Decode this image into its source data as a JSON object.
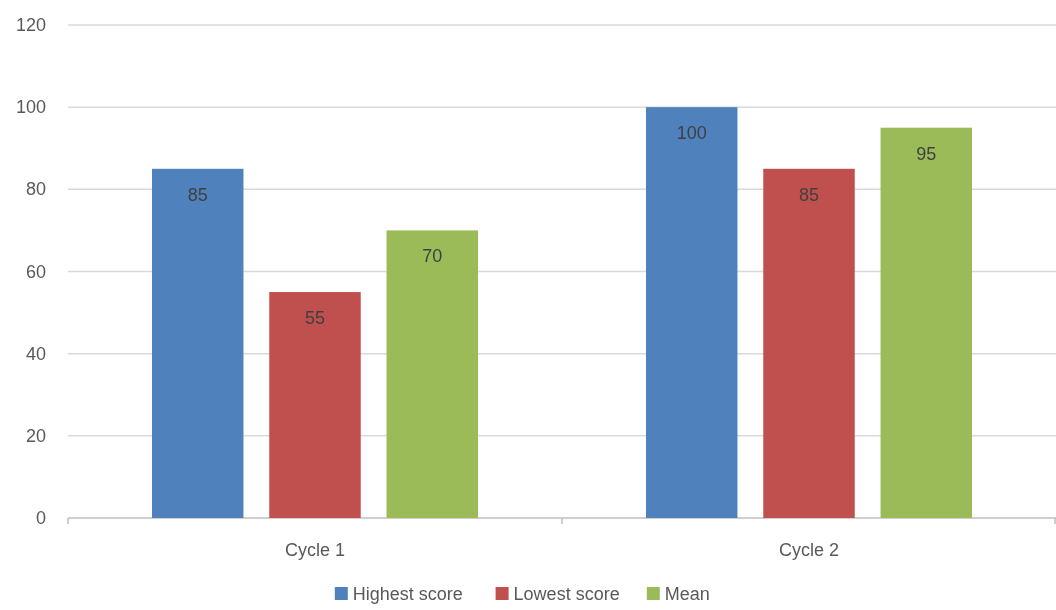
{
  "chart_data": {
    "type": "bar",
    "categories": [
      "Cycle 1",
      "Cycle 2"
    ],
    "series": [
      {
        "name": "Highest score",
        "color": "#4f81bd",
        "values": [
          85,
          100
        ]
      },
      {
        "name": "Lowest score",
        "color": "#c0504d",
        "values": [
          55,
          85
        ]
      },
      {
        "name": "Mean",
        "color": "#9bbb59",
        "values": [
          70,
          95
        ]
      }
    ],
    "ylim": [
      0,
      120
    ],
    "yticks": [
      0,
      20,
      40,
      60,
      80,
      100,
      120
    ],
    "grid": "y",
    "legend": "bottom",
    "data_labels": true
  }
}
